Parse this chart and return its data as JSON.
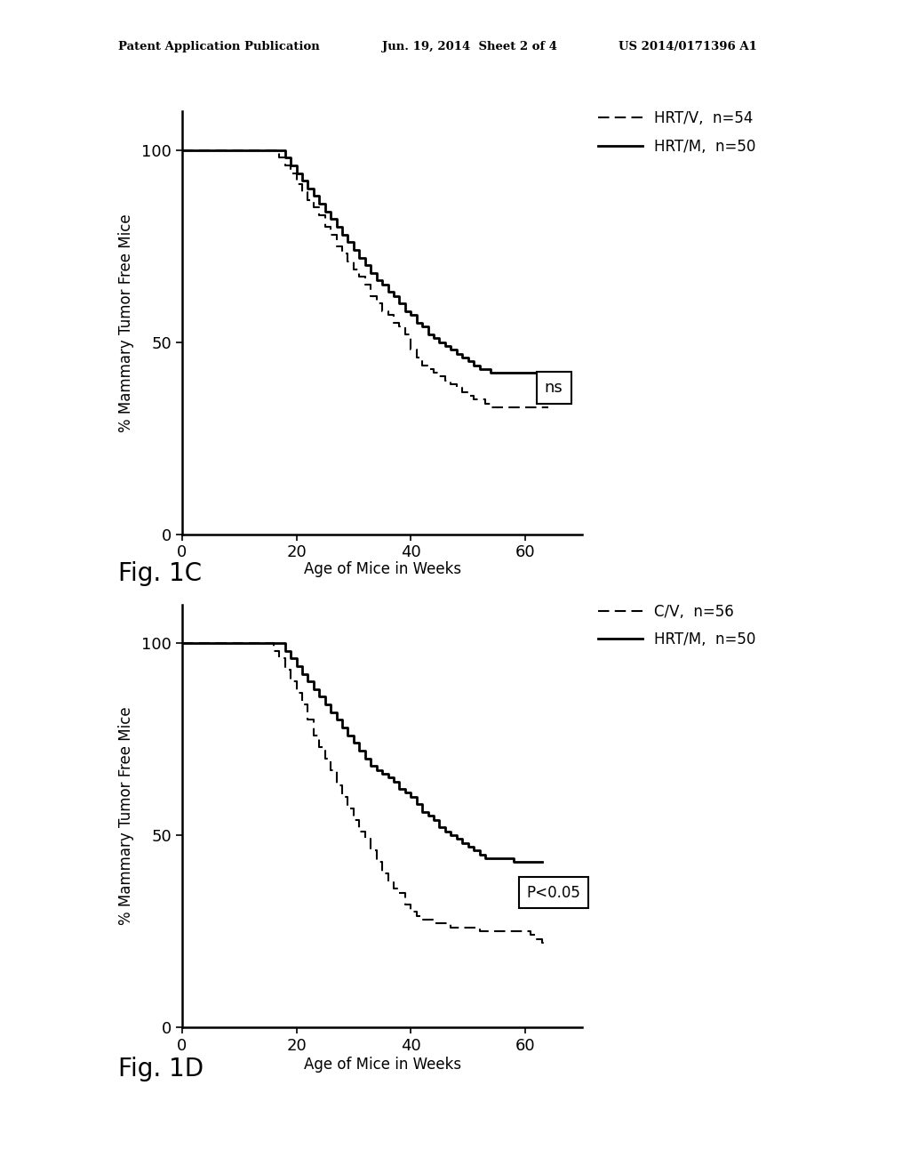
{
  "bg_color": "#ffffff",
  "header_left": "Patent Application Publication",
  "header_mid": "Jun. 19, 2014  Sheet 2 of 4",
  "header_right": "US 2014/0171396 A1",
  "fig1c_label": "Fig. 1C",
  "fig1d_label": "Fig. 1D",
  "xlabel": "Age of Mice in Weeks",
  "ylabel": "% Mammary Tumor Free Mice",
  "xlim": [
    0,
    70
  ],
  "ylim": [
    0,
    110
  ],
  "xticks": [
    0,
    20,
    40,
    60
  ],
  "yticks": [
    0,
    50,
    100
  ],
  "fig1c_annotation": "ns",
  "fig1d_annotation": "P<0.05",
  "fig1c_legend": [
    "HRT/V,  n=54",
    "HRT/M,  n=50"
  ],
  "fig1d_legend": [
    "C/V,  n=56",
    "HRT/M,  n=50"
  ],
  "hrtv_x": [
    0,
    16,
    17,
    18,
    19,
    20,
    21,
    22,
    23,
    24,
    25,
    26,
    27,
    28,
    29,
    30,
    31,
    32,
    33,
    34,
    35,
    36,
    37,
    38,
    39,
    40,
    41,
    42,
    43,
    44,
    45,
    46,
    47,
    48,
    49,
    50,
    51,
    52,
    53,
    54,
    55,
    56,
    57,
    58,
    59,
    60,
    61,
    62,
    63,
    64
  ],
  "hrtv_y": [
    100,
    100,
    98,
    96,
    94,
    91,
    89,
    87,
    85,
    83,
    80,
    78,
    75,
    73,
    71,
    69,
    67,
    65,
    62,
    60,
    58,
    57,
    55,
    54,
    52,
    48,
    46,
    44,
    43,
    42,
    41,
    40,
    39,
    38,
    37,
    36,
    35,
    35,
    34,
    33,
    33,
    33,
    33,
    33,
    33,
    33,
    33,
    33,
    33,
    33
  ],
  "hrtm_x": [
    0,
    17,
    18,
    19,
    20,
    21,
    22,
    23,
    24,
    25,
    26,
    27,
    28,
    29,
    30,
    31,
    32,
    33,
    34,
    35,
    36,
    37,
    38,
    39,
    40,
    41,
    42,
    43,
    44,
    45,
    46,
    47,
    48,
    49,
    50,
    51,
    52,
    53,
    54,
    55,
    56,
    57,
    58,
    59,
    60,
    61,
    62,
    63
  ],
  "hrtm_y": [
    100,
    100,
    98,
    96,
    94,
    92,
    90,
    88,
    86,
    84,
    82,
    80,
    78,
    76,
    74,
    72,
    70,
    68,
    66,
    65,
    63,
    62,
    60,
    58,
    57,
    55,
    54,
    52,
    51,
    50,
    49,
    48,
    47,
    46,
    45,
    44,
    43,
    43,
    42,
    42,
    42,
    42,
    42,
    42,
    42,
    42,
    42,
    42
  ],
  "cv_x": [
    0,
    15,
    16,
    17,
    18,
    19,
    20,
    21,
    22,
    23,
    24,
    25,
    26,
    27,
    28,
    29,
    30,
    31,
    32,
    33,
    34,
    35,
    36,
    37,
    38,
    39,
    40,
    41,
    42,
    43,
    44,
    45,
    46,
    47,
    48,
    49,
    50,
    51,
    52,
    53,
    54,
    55,
    56,
    57,
    58,
    59,
    60,
    61,
    62,
    63,
    64
  ],
  "cv_y": [
    100,
    100,
    98,
    96,
    93,
    90,
    87,
    84,
    80,
    76,
    73,
    70,
    67,
    63,
    60,
    57,
    54,
    51,
    49,
    46,
    43,
    40,
    38,
    36,
    35,
    32,
    30,
    29,
    28,
    28,
    27,
    27,
    27,
    26,
    26,
    26,
    26,
    26,
    25,
    25,
    25,
    25,
    25,
    25,
    25,
    25,
    25,
    24,
    23,
    22,
    22
  ],
  "hrtm2_x": [
    0,
    17,
    18,
    19,
    20,
    21,
    22,
    23,
    24,
    25,
    26,
    27,
    28,
    29,
    30,
    31,
    32,
    33,
    34,
    35,
    36,
    37,
    38,
    39,
    40,
    41,
    42,
    43,
    44,
    45,
    46,
    47,
    48,
    49,
    50,
    51,
    52,
    53,
    54,
    55,
    56,
    57,
    58,
    59,
    60,
    61,
    62,
    63
  ],
  "hrtm2_y": [
    100,
    100,
    98,
    96,
    94,
    92,
    90,
    88,
    86,
    84,
    82,
    80,
    78,
    76,
    74,
    72,
    70,
    68,
    67,
    66,
    65,
    64,
    62,
    61,
    60,
    58,
    56,
    55,
    54,
    52,
    51,
    50,
    49,
    48,
    47,
    46,
    45,
    44,
    44,
    44,
    44,
    44,
    43,
    43,
    43,
    43,
    43,
    43
  ]
}
